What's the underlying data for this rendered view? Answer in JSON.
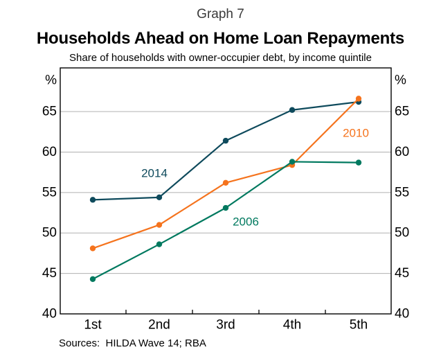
{
  "page": {
    "graph_number": "Graph 7",
    "title": "Households Ahead on Home Loan Repayments",
    "subtitle": "Share of households with owner-occupier debt, by income quintile",
    "sources": "Sources:  HILDA Wave 14; RBA"
  },
  "colors": {
    "axis": "#000000",
    "gridline": "#b0b0b0",
    "tick_label_text": "#000000",
    "graph_number_text": "#3a3a3a"
  },
  "chart_data": {
    "type": "line",
    "title": "Households Ahead on Home Loan Repayments",
    "subtitle": "Share of households with owner-occupier debt, by income quintile",
    "xlabel": "",
    "ylabel": "%",
    "unit": "%",
    "categories": [
      "1st",
      "2nd",
      "3rd",
      "4th",
      "5th"
    ],
    "series": [
      {
        "name": "2014",
        "color": "#0e4a5c",
        "values": [
          54.1,
          54.4,
          61.4,
          65.2,
          66.2
        ],
        "label_pos": {
          "x": 223,
          "y": 250
        }
      },
      {
        "name": "2010",
        "color": "#f5731d",
        "values": [
          48.1,
          51.0,
          56.2,
          58.4,
          66.6
        ],
        "label_pos": {
          "x": 514,
          "y": 192
        }
      },
      {
        "name": "2006",
        "color": "#00795f",
        "values": [
          44.3,
          48.6,
          53.1,
          58.8,
          58.7
        ],
        "label_pos": {
          "x": 355,
          "y": 320
        }
      }
    ],
    "yticks": [
      40,
      45,
      50,
      55,
      60,
      65
    ],
    "ylim": [
      40,
      70.4
    ],
    "grid": true,
    "markers": true,
    "axis_unit_both_sides": true,
    "tick_labels_both_sides": true,
    "legend_position": "inline-labels"
  }
}
